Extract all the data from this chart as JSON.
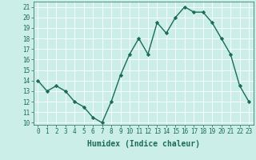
{
  "x": [
    0,
    1,
    2,
    3,
    4,
    5,
    6,
    7,
    8,
    9,
    10,
    11,
    12,
    13,
    14,
    15,
    16,
    17,
    18,
    19,
    20,
    21,
    22,
    23
  ],
  "y": [
    14,
    13,
    13.5,
    13,
    12,
    11.5,
    10.5,
    10,
    12,
    14.5,
    16.5,
    18,
    16.5,
    19.5,
    18.5,
    20,
    21,
    20.5,
    20.5,
    19.5,
    18,
    16.5,
    13.5,
    12
  ],
  "line_color": "#1a6b5a",
  "marker": "D",
  "marker_size": 2.2,
  "line_width": 1.0,
  "bg_color": "#cceee8",
  "grid_color": "#ffffff",
  "xlabel": "Humidex (Indice chaleur)",
  "xlabel_fontsize": 7,
  "tick_fontsize": 5.5,
  "ylim": [
    9.8,
    21.5
  ],
  "xlim": [
    -0.5,
    23.5
  ],
  "yticks": [
    10,
    11,
    12,
    13,
    14,
    15,
    16,
    17,
    18,
    19,
    20,
    21
  ],
  "xticks": [
    0,
    1,
    2,
    3,
    4,
    5,
    6,
    7,
    8,
    9,
    10,
    11,
    12,
    13,
    14,
    15,
    16,
    17,
    18,
    19,
    20,
    21,
    22,
    23
  ]
}
